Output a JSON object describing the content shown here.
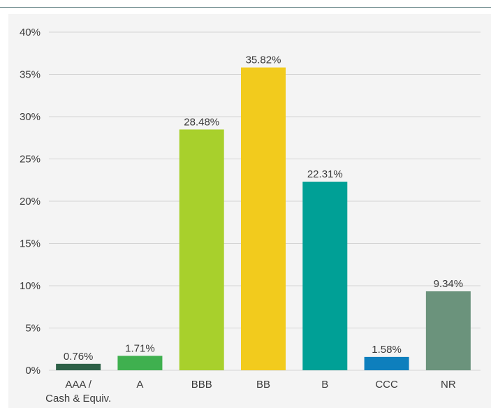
{
  "chart_data": {
    "type": "bar",
    "categories": [
      "AAA / Cash & Equiv.",
      "A",
      "BBB",
      "BB",
      "B",
      "CCC",
      "NR"
    ],
    "category_lines": [
      [
        "AAA /",
        "Cash & Equiv."
      ],
      [
        "A"
      ],
      [
        "BBB"
      ],
      [
        "BB"
      ],
      [
        "B"
      ],
      [
        "CCC"
      ],
      [
        "NR"
      ]
    ],
    "values": [
      0.76,
      1.71,
      28.48,
      35.82,
      22.31,
      1.58,
      9.34
    ],
    "data_labels": [
      "0.76%",
      "1.71%",
      "28.48%",
      "35.82%",
      "22.31%",
      "1.58%",
      "9.34%"
    ],
    "colors": [
      "#2d6047",
      "#3fb04f",
      "#a8d02c",
      "#f2cb1d",
      "#00a096",
      "#0e7fbd",
      "#6b937c"
    ],
    "y_ticks": [
      0,
      5,
      10,
      15,
      20,
      25,
      30,
      35,
      40
    ],
    "y_tick_labels": [
      "0%",
      "5%",
      "10%",
      "15%",
      "20%",
      "25%",
      "30%",
      "35%",
      "40%"
    ],
    "ylim": [
      0,
      40
    ],
    "grid": true,
    "title": "",
    "xlabel": "",
    "ylabel": ""
  },
  "colors": {
    "panel_background": "#f4f4f4",
    "grid": "#d4d4d4",
    "top_rule": "#6e8a8c"
  }
}
